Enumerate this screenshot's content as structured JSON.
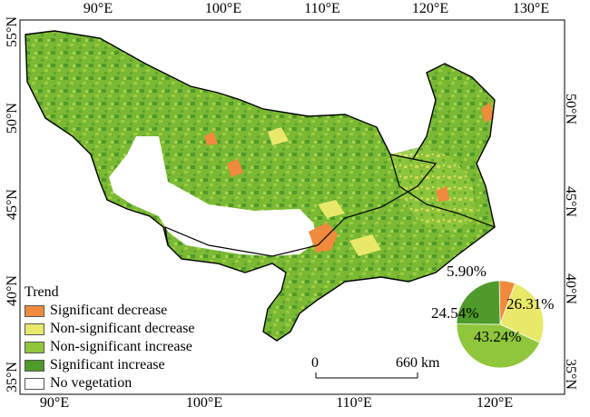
{
  "map": {
    "lon_ticks_top": [
      "90°E",
      "100°E",
      "110°E",
      "120°E",
      "130°E"
    ],
    "lon_ticks_bottom": [
      "90°E",
      "100°E",
      "110°E",
      "120°E"
    ],
    "lat_ticks_left": [
      "55°N",
      "50°N",
      "45°N",
      "40°N",
      "35°N"
    ],
    "lat_ticks_right": [
      "50°N",
      "45°N",
      "40°N",
      "35°N"
    ]
  },
  "legend": {
    "title": "Trend",
    "items": [
      {
        "label": "Significant decrease",
        "color": "#f08a3c"
      },
      {
        "label": "Non-significant decrease",
        "color": "#e8e86a"
      },
      {
        "label": "Non-significant increase",
        "color": "#8fc63c"
      },
      {
        "label": "Significant increase",
        "color": "#4e9a2a"
      },
      {
        "label": "No vegetation",
        "color": "#ffffff"
      }
    ]
  },
  "scale_bar": {
    "start_label": "0",
    "end_label": "660 km"
  },
  "pie": {
    "slices": [
      {
        "label": "5.90%",
        "value": 5.9,
        "color": "#f08a3c"
      },
      {
        "label": "26.31%",
        "value": 26.31,
        "color": "#e8e86a"
      },
      {
        "label": "43.24%",
        "value": 43.24,
        "color": "#8fc63c"
      },
      {
        "label": "24.54%",
        "value": 24.54,
        "color": "#4e9a2a"
      }
    ]
  }
}
